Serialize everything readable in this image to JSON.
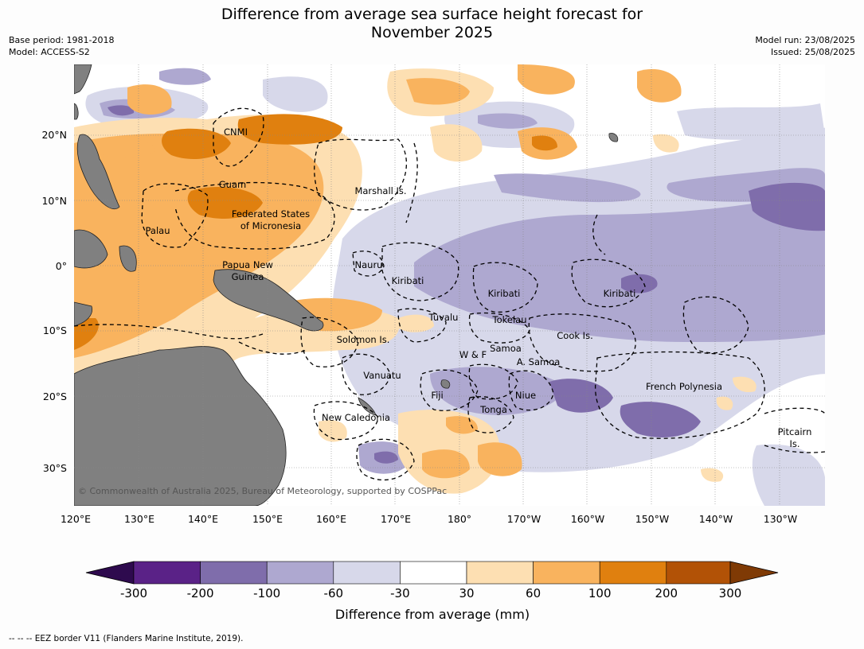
{
  "title": {
    "line1": "Difference from average sea surface height forecast for",
    "line2": "November 2025"
  },
  "meta_left": {
    "base_period": "Base period: 1981-2018",
    "model": "Model: ACCESS-S2"
  },
  "meta_right": {
    "model_run": "Model run: 23/08/2025",
    "issued": "Issued: 25/08/2025"
  },
  "map": {
    "lon_ticks": [
      "120°E",
      "130°E",
      "140°E",
      "150°E",
      "160°E",
      "170°E",
      "180°",
      "170°W",
      "160°W",
      "150°W",
      "140°W",
      "130°W"
    ],
    "lat_ticks": [
      "20°N",
      "10°N",
      "0°",
      "10°S",
      "20°S",
      "30°S"
    ],
    "land_color": "#808080",
    "places": [
      {
        "name": "CNMI"
      },
      {
        "name": "Guam"
      },
      {
        "name": "Marshall Is."
      },
      {
        "name": "Federated States"
      },
      {
        "name": "of Micronesia"
      },
      {
        "name": "Palau"
      },
      {
        "name": "Papua New"
      },
      {
        "name": "Guinea"
      },
      {
        "name": "Nauru"
      },
      {
        "name": "Kiribati"
      },
      {
        "name": "Kiribati"
      },
      {
        "name": "Kiribati"
      },
      {
        "name": "Tuvalu"
      },
      {
        "name": "Tokelau"
      },
      {
        "name": "Cook Is."
      },
      {
        "name": "Solomon Is."
      },
      {
        "name": "Samoa"
      },
      {
        "name": "W & F"
      },
      {
        "name": "A. Samoa"
      },
      {
        "name": "Vanuatu"
      },
      {
        "name": "Fiji"
      },
      {
        "name": "Niue"
      },
      {
        "name": "Tonga"
      },
      {
        "name": "French Polynesia"
      },
      {
        "name": "New Caledonia"
      },
      {
        "name": "Pitcairn"
      },
      {
        "name": "Is."
      }
    ],
    "copyright": "© Commonwealth of Australia 2025, Bureau of Meteorology, supported by COSPPac"
  },
  "colorbar": {
    "ticks": [
      "-300",
      "-200",
      "-100",
      "-60",
      "-30",
      "30",
      "60",
      "100",
      "200",
      "300"
    ],
    "colors": [
      "#5a2287",
      "#7f6dab",
      "#aea8d0",
      "#d7d8ea",
      "#ffffff",
      "#fddfb2",
      "#f9b35e",
      "#e0800f",
      "#b25206"
    ],
    "under_color": "#2e0a4e",
    "over_color": "#7f3a05",
    "label": "Difference from average (mm)"
  },
  "footer": "--  --  -- EEZ border V11 (Flanders Marine Institute, 2019)."
}
